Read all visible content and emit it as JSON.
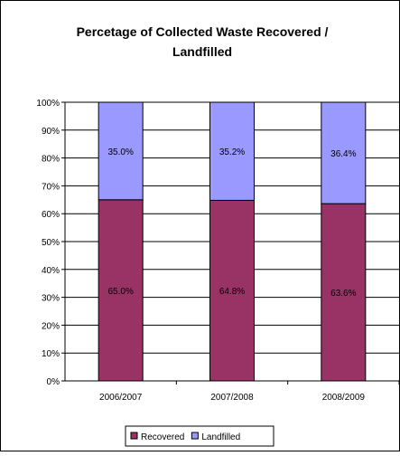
{
  "chart_data": {
    "type": "bar",
    "stacked": true,
    "title_lines": [
      "Percetage of Collected Waste Recovered /",
      "Landfilled"
    ],
    "categories": [
      "2006/2007",
      "2007/2008",
      "2008/2009"
    ],
    "series": [
      {
        "name": "Recovered",
        "values": [
          65.0,
          64.8,
          63.6
        ],
        "labels": [
          "65.0%",
          "64.8%",
          "63.6%"
        ],
        "color": "#993366"
      },
      {
        "name": "Landfilled",
        "values": [
          35.0,
          35.2,
          36.4
        ],
        "labels": [
          "35.0%",
          "35.2%",
          "36.4%"
        ],
        "color": "#9999FF"
      }
    ],
    "y_ticks": [
      "0%",
      "10%",
      "20%",
      "30%",
      "40%",
      "50%",
      "60%",
      "70%",
      "80%",
      "90%",
      "100%"
    ],
    "ylim": [
      0,
      100
    ],
    "grid": true,
    "legend_position": "bottom"
  }
}
